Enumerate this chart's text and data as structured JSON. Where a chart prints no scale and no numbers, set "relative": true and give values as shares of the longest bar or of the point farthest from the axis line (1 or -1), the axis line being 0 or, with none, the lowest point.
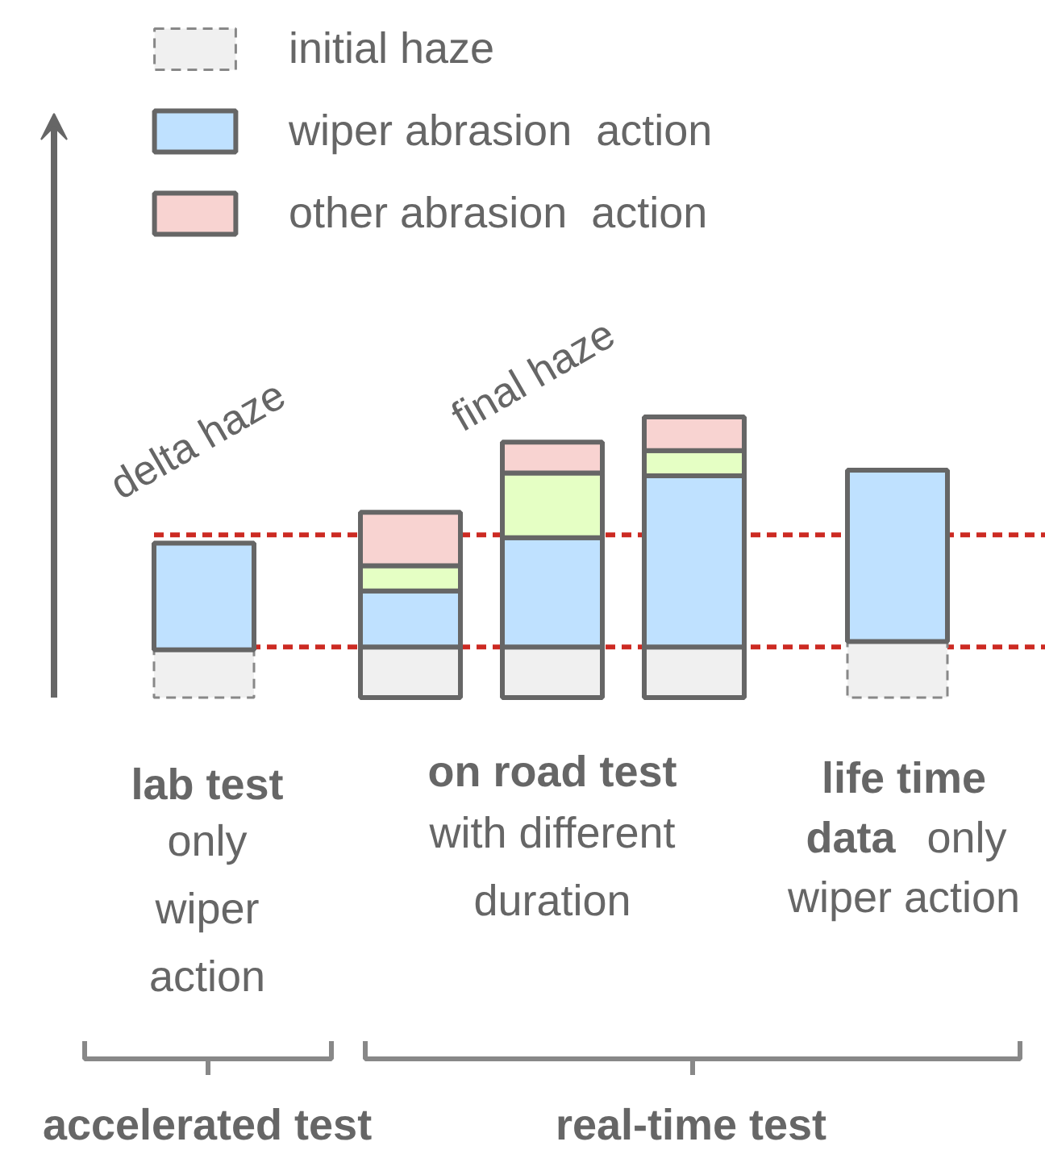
{
  "chart_data": {
    "type": "bar",
    "stacked": true,
    "relative": true,
    "categories": [
      null,
      null,
      null,
      null,
      null
    ],
    "series": [
      {
        "name": "initial haze",
        "color": "#f0f0f0",
        "line_style": "dashed",
        "values": [
          0.17,
          0.18,
          0.18,
          0.18,
          0.2
        ]
      },
      {
        "name": "wiper abrasion  action",
        "color": "#bfe1ff",
        "values": [
          0.38,
          0.2,
          0.39,
          0.61,
          0.61
        ]
      },
      {
        "color": "#e5ffc4",
        "values": [
          0,
          0.09,
          0.23,
          0.09,
          0
        ]
      },
      {
        "name": "other abrasion  action",
        "color": "#f8d3d1",
        "values": [
          0,
          0.19,
          0.11,
          0.12,
          0
        ]
      }
    ],
    "ref_lines": [
      {
        "axis": "y",
        "value": 0.18,
        "color": "#cc2a22",
        "line_style": "dashed"
      },
      {
        "axis": "y",
        "value": 0.58,
        "color": "#cc2a22",
        "line_style": "dashed"
      }
    ],
    "legend": "top left",
    "annotations": [
      "delta haze",
      "final haze",
      "lab test",
      "only\nwiper\naction",
      "on road test",
      "with different\nduration",
      "life time",
      "data",
      "only",
      "wiper action",
      "accelerated test",
      "real-time test"
    ]
  }
}
